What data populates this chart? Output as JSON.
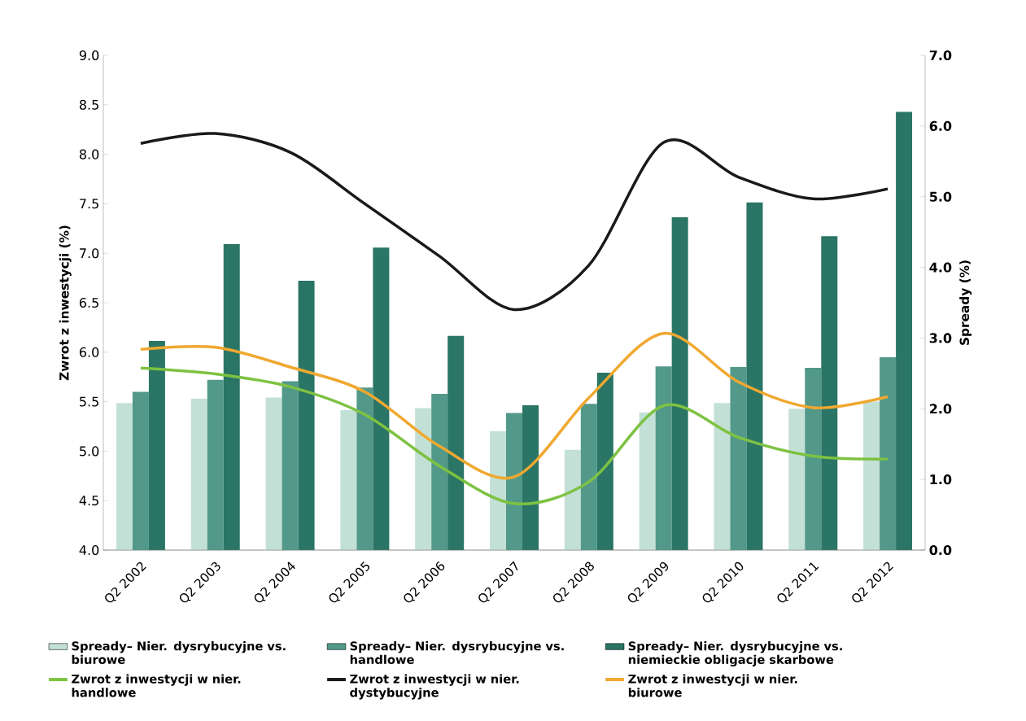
{
  "chart_data": {
    "type": "bar",
    "ylabel": "Zwrot z inwestycji (%)",
    "y2label": "Spready (%)",
    "categories": [
      "Q2 2002",
      "Q2 2003",
      "Q2 2004",
      "Q2 2005",
      "Q2 2006",
      "Q2 2007",
      "Q2 2008",
      "Q2 2009",
      "Q2 2010",
      "Q2 2011",
      "Q2 2012"
    ],
    "series": [
      {
        "name": "Spready– Nier. dysrybucyjne vs. biurowe",
        "axis": "y2",
        "color": "#c3e0d6",
        "values": [
          2.08,
          2.14,
          2.16,
          1.98,
          2.01,
          1.68,
          1.42,
          1.95,
          2.08,
          2.0,
          2.1
        ]
      },
      {
        "name": "Spready– Nier. dysrybucyjne vs. handlowe",
        "axis": "y2",
        "color": "#52998a",
        "values": [
          2.24,
          2.41,
          2.39,
          2.3,
          2.21,
          1.94,
          2.07,
          2.6,
          2.59,
          2.58,
          2.73
        ]
      },
      {
        "name": "Spready– Nier. dysrybucyjne vs. niemieckie obligacje skarbowe",
        "axis": "y2",
        "color": "#2a7565",
        "values": [
          2.96,
          4.33,
          3.81,
          4.28,
          3.03,
          2.05,
          2.51,
          4.71,
          4.92,
          4.44,
          6.2
        ]
      },
      {
        "name": "Zwrot z inwestycji w nier. handlowe",
        "type": "line",
        "color": "#7dc242",
        "values": [
          5.84,
          5.78,
          5.65,
          5.37,
          4.85,
          4.47,
          4.69,
          5.46,
          5.14,
          4.95,
          4.92
        ]
      },
      {
        "name": "Zwrot z inwestycji w nier. dystybucyjne",
        "type": "line",
        "color": "#1a1a1a",
        "values": [
          8.11,
          8.21,
          8.02,
          7.5,
          6.97,
          6.43,
          6.88,
          8.12,
          7.77,
          7.55,
          7.65
        ]
      },
      {
        "name": "Zwrot z inwestycji w nier. biurowe",
        "type": "line",
        "color": "#f0a830",
        "values": [
          6.03,
          6.05,
          5.85,
          5.6,
          5.05,
          4.74,
          5.54,
          6.19,
          5.7,
          5.44,
          5.55
        ]
      }
    ],
    "ylim": [
      4,
      9
    ],
    "yticks": [
      {
        "value": 4,
        "label": "4.0"
      },
      {
        "value": 4.5,
        "label": "4.5"
      },
      {
        "value": 5,
        "label": "5.0"
      },
      {
        "value": 5.5,
        "label": "5.5"
      },
      {
        "value": 6,
        "label": "6.0"
      },
      {
        "value": 6.5,
        "label": "6.5"
      },
      {
        "value": 7,
        "label": "7.0"
      },
      {
        "value": 7.5,
        "label": "7.5"
      },
      {
        "value": 8,
        "label": "8.0"
      },
      {
        "value": 8.5,
        "label": "8.5"
      },
      {
        "value": 9,
        "label": "9.0"
      }
    ],
    "y2lim": [
      0,
      7
    ],
    "y2ticks": [
      {
        "value": 0,
        "label": "0.0"
      },
      {
        "value": 1,
        "label": "1.0"
      },
      {
        "value": 2,
        "label": "2.0"
      },
      {
        "value": 3,
        "label": "3.0"
      },
      {
        "value": 4,
        "label": "4.0"
      },
      {
        "value": 5,
        "label": "5.0"
      },
      {
        "value": 6,
        "label": "6.0"
      },
      {
        "value": 7,
        "label": "7.0"
      }
    ],
    "legend": "bottom"
  }
}
